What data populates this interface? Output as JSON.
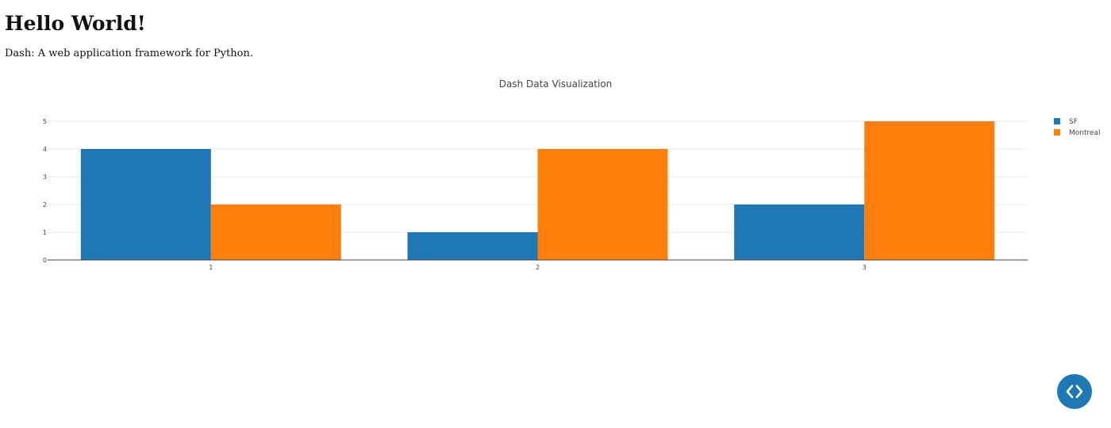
{
  "page": {
    "heading": "Hello World!",
    "subheading": "Dash: A web application framework for Python."
  },
  "chart_data": {
    "type": "bar",
    "title": "Dash Data Visualization",
    "xlabel": "",
    "ylabel": "",
    "categories": [
      "1",
      "2",
      "3"
    ],
    "series": [
      {
        "name": "SF",
        "values": [
          4,
          1,
          2
        ],
        "color": "#1f77b4"
      },
      {
        "name": "Montreal",
        "values": [
          2,
          4,
          5
        ],
        "color": "#ff7f0e"
      }
    ],
    "ylim": [
      0,
      5.5
    ],
    "yticks": [
      0,
      1,
      2,
      3,
      4,
      5
    ],
    "grid": true,
    "legend": "top-right"
  },
  "devtools": {
    "toggle_icon": "code-icon",
    "color": "#1f77b4"
  }
}
